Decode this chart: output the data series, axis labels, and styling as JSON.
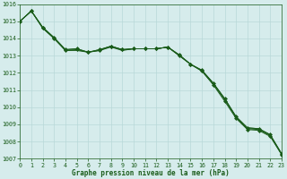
{
  "background_color": "#d6ecec",
  "grid_color": "#b8d8d8",
  "line_color": "#1a5c1a",
  "title": "Graphe pression niveau de la mer (hPa)",
  "xlim": [
    0,
    23
  ],
  "ylim": [
    1007,
    1016
  ],
  "xticks": [
    0,
    1,
    2,
    3,
    4,
    5,
    6,
    7,
    8,
    9,
    10,
    11,
    12,
    13,
    14,
    15,
    16,
    17,
    18,
    19,
    20,
    21,
    22,
    23
  ],
  "yticks": [
    1007,
    1008,
    1009,
    1010,
    1011,
    1012,
    1013,
    1014,
    1015,
    1016
  ],
  "series": [
    [
      1015.0,
      1015.6,
      1014.6,
      1014.0,
      1013.3,
      1013.3,
      1013.2,
      1013.3,
      1013.5,
      1013.3,
      1013.4,
      1013.4,
      1013.4,
      1013.5,
      1013.0,
      1012.5,
      1012.1,
      1011.35,
      1010.45,
      1009.4,
      1008.75,
      1008.7,
      1008.35,
      1007.25
    ],
    [
      1015.0,
      1015.6,
      1014.6,
      1014.0,
      1013.3,
      1013.35,
      1013.2,
      1013.3,
      1013.55,
      1013.35,
      1013.4,
      1013.4,
      1013.4,
      1013.5,
      1013.0,
      1012.5,
      1012.1,
      1011.3,
      1010.35,
      1009.35,
      1008.7,
      1008.65,
      1008.3,
      1007.25
    ],
    [
      1015.0,
      1015.6,
      1014.65,
      1014.05,
      1013.35,
      1013.4,
      1013.2,
      1013.35,
      1013.55,
      1013.35,
      1013.4,
      1013.4,
      1013.4,
      1013.5,
      1013.05,
      1012.5,
      1012.15,
      1011.4,
      1010.5,
      1009.45,
      1008.8,
      1008.75,
      1008.4,
      1007.3
    ],
    [
      1015.0,
      1015.6,
      1014.65,
      1014.05,
      1013.35,
      1013.4,
      1013.2,
      1013.35,
      1013.55,
      1013.35,
      1013.4,
      1013.4,
      1013.4,
      1013.5,
      1013.05,
      1012.5,
      1012.15,
      1011.4,
      1010.5,
      1009.45,
      1008.8,
      1008.75,
      1008.4,
      1007.3
    ]
  ],
  "markers_on_series": [
    1,
    3
  ],
  "title_fontsize": 5.5,
  "tick_fontsize": 4.8,
  "figsize": [
    3.2,
    2.0
  ],
  "dpi": 100
}
